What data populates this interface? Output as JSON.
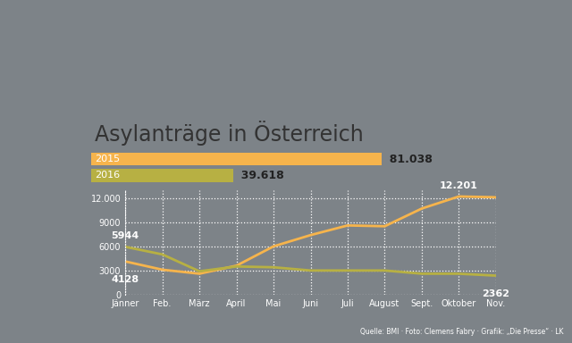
{
  "chart_data": [
    {
      "type": "bar",
      "title": "Asylanträge in Österreich",
      "orientation": "horizontal",
      "categories": [
        "2015",
        "2016"
      ],
      "values": [
        81038,
        39618
      ],
      "value_labels": [
        "81.038",
        "39.618"
      ],
      "data_labels": true,
      "colors": [
        "#f6b44c",
        "#b7b043"
      ],
      "xlim": [
        0,
        100000
      ],
      "tick_labels": false,
      "grid": false
    },
    {
      "type": "line",
      "categories": [
        "Jänner",
        "Feb.",
        "März",
        "April",
        "Mai",
        "Juni",
        "Juli",
        "August",
        "Sept.",
        "Oktober",
        "Nov."
      ],
      "series": [
        {
          "name": "2015",
          "color": "#f6b44c",
          "values": [
            4128,
            3100,
            2600,
            3600,
            6000,
            7400,
            8600,
            8500,
            10700,
            12201,
            12100
          ],
          "value_labels": [
            "4128",
            null,
            null,
            null,
            null,
            null,
            null,
            null,
            null,
            "12.201",
            null
          ]
        },
        {
          "name": "2016",
          "color": "#b7b043",
          "values": [
            5944,
            5000,
            2900,
            3500,
            3400,
            3000,
            3000,
            3000,
            2600,
            2600,
            2362
          ],
          "value_labels": [
            "5944",
            null,
            null,
            null,
            null,
            null,
            null,
            null,
            null,
            null,
            "2362"
          ]
        }
      ],
      "data_labels": true,
      "ylim": [
        0,
        13000
      ],
      "yticks": [
        0,
        3000,
        6000,
        9000,
        {
          "value": 12000,
          "label": "12.000"
        }
      ],
      "grid": true,
      "annotations": [
        "Quelle: BMI · Foto: Clemens Fabry · Grafik: „Die Presse“ · LK"
      ]
    }
  ]
}
